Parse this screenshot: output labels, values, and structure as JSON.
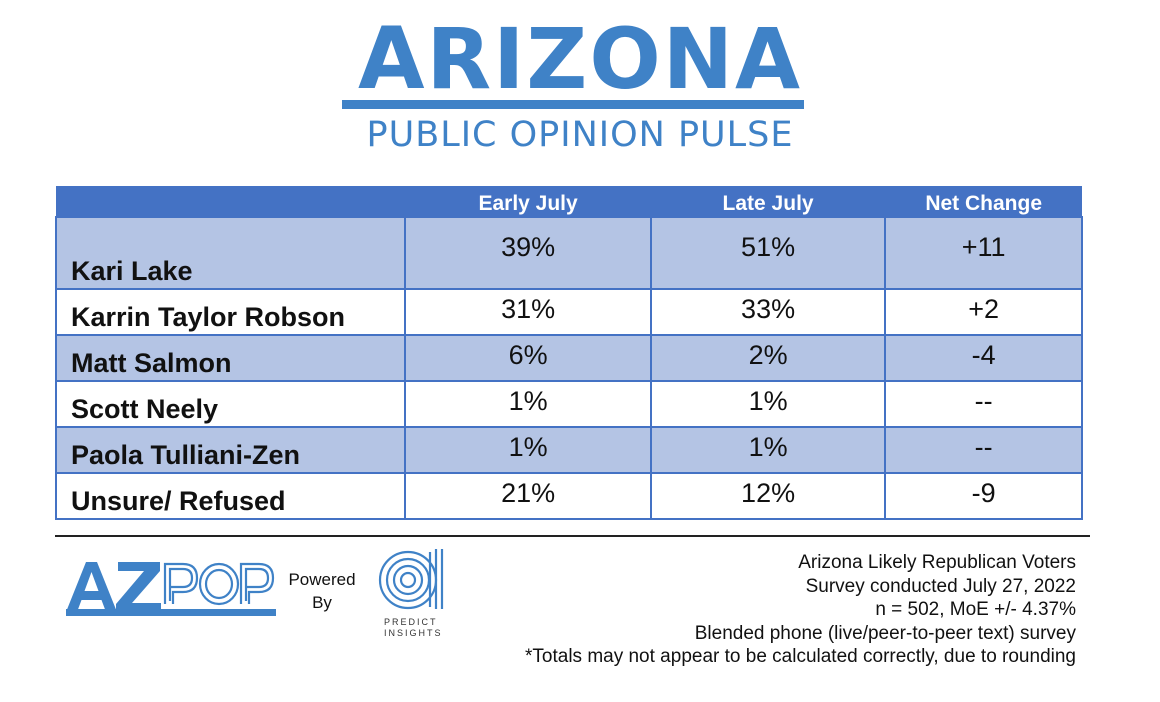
{
  "header": {
    "title_first": "A",
    "title_rest": "RIZONA",
    "subtitle": "PUBLIC OPINION PULSE"
  },
  "chart_data": {
    "type": "table",
    "columns": [
      "",
      "Early July",
      "Late July",
      "Net Change"
    ],
    "rows": [
      {
        "name": "Kari Lake",
        "early": "39%",
        "late": "51%",
        "change": "+11"
      },
      {
        "name": "Karrin Taylor Robson",
        "early": "31%",
        "late": "33%",
        "change": "+2"
      },
      {
        "name": "Matt Salmon",
        "early": "6%",
        "late": "2%",
        "change": "-4"
      },
      {
        "name": "Scott Neely",
        "early": "1%",
        "late": "1%",
        "change": "--"
      },
      {
        "name": "Paola Tulliani-Zen",
        "early": "1%",
        "late": "1%",
        "change": "--"
      },
      {
        "name": "Unsure/ Refused",
        "early": "21%",
        "late": "12%",
        "change": "-9"
      }
    ]
  },
  "footer": {
    "logo_text": "AZPOP",
    "powered_by": [
      "Powered",
      "By"
    ],
    "partner_name": [
      "PREDICT",
      "INSIGHTS"
    ],
    "notes": [
      "Arizona Likely Republican Voters",
      "Survey conducted July 27, 2022",
      "n = 502, MoE +/- 4.37%",
      "Blended phone (live/peer-to-peer text) survey",
      "*Totals may not appear to be calculated correctly, due to rounding"
    ]
  },
  "colors": {
    "brand_blue": "#3f82c7",
    "header_blue": "#4472c4",
    "row_shade": "#b4c4e4"
  }
}
